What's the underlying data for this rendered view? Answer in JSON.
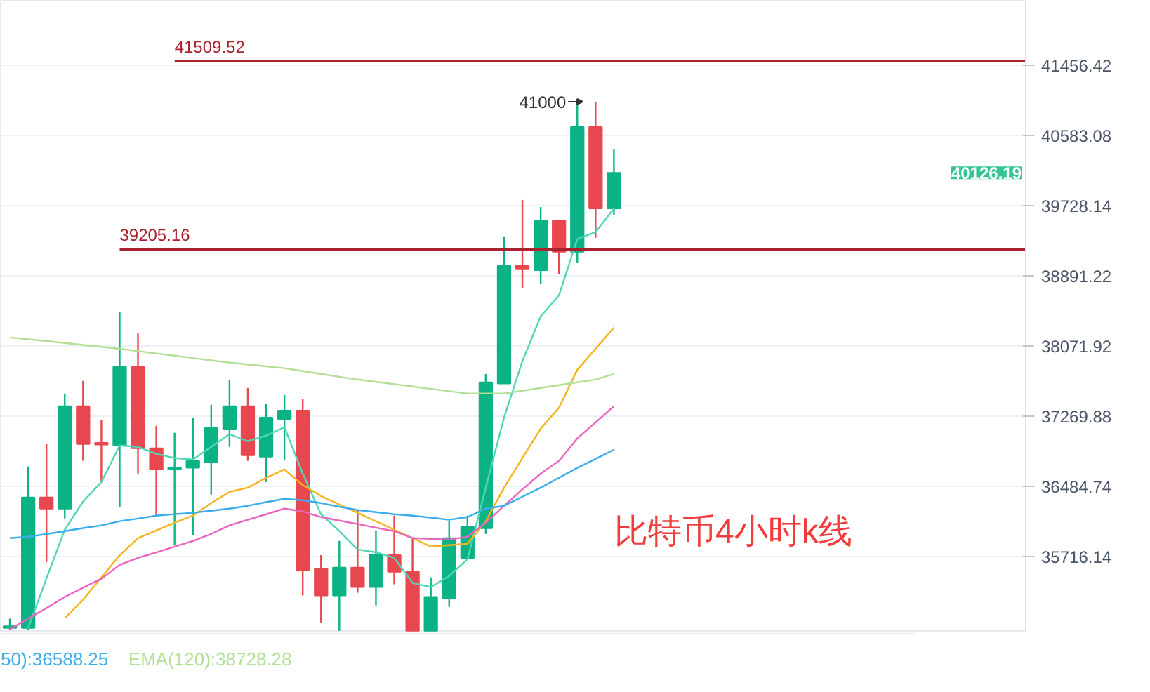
{
  "chart_data": {
    "type": "candlestick",
    "title": "比特币4小时k线",
    "categories": [
      null,
      null,
      null,
      null,
      null,
      null,
      null,
      null,
      null,
      null,
      null,
      null,
      null,
      null,
      null,
      null,
      null,
      null,
      null,
      null,
      null,
      null,
      null,
      null,
      null,
      null,
      null,
      null,
      null,
      null,
      null,
      null,
      null,
      null,
      null,
      null,
      null,
      null,
      null,
      null,
      null,
      null,
      null,
      null,
      null,
      null,
      null,
      null,
      null,
      null,
      null,
      null,
      null,
      null,
      null,
      null
    ],
    "ohlc": [
      [
        34950,
        35050,
        34930,
        34970
      ],
      [
        34950,
        36705,
        34930,
        36362
      ],
      [
        36362,
        36956,
        35656,
        36239
      ],
      [
        36239,
        37526,
        36131,
        37382
      ],
      [
        37382,
        37670,
        36768,
        36956
      ],
      [
        36970,
        37223,
        36532,
        36950
      ],
      [
        36940,
        38466,
        36254,
        37832
      ],
      [
        37832,
        38220,
        36626,
        36909
      ],
      [
        36909,
        37160,
        36162,
        36673
      ],
      [
        36673,
        37082,
        35839,
        36690
      ],
      [
        36690,
        37254,
        35947,
        36768
      ],
      [
        36752,
        37398,
        36393,
        37142
      ],
      [
        37127,
        37686,
        36924,
        37382
      ],
      [
        37382,
        37590,
        36768,
        36830
      ],
      [
        36815,
        37414,
        36532,
        37254
      ],
      [
        37238,
        37510,
        36783,
        37334
      ],
      [
        37334,
        37462,
        35296,
        35566
      ],
      [
        35581,
        35731,
        35009,
        35296
      ],
      [
        35296,
        35885,
        34920,
        35596
      ],
      [
        35596,
        36223,
        35326,
        35386
      ],
      [
        35386,
        35993,
        35190,
        35731
      ],
      [
        35731,
        36162,
        35416,
        35551
      ],
      [
        35551,
        35916,
        34920,
        34920
      ],
      [
        34920,
        35491,
        34920,
        35281
      ],
      [
        35266,
        36101,
        35175,
        35916
      ],
      [
        35701,
        36162,
        35686,
        36039
      ],
      [
        36023,
        37750,
        35962,
        37654
      ],
      [
        37640,
        39359,
        37640,
        39008
      ],
      [
        39008,
        39796,
        38744,
        38975
      ],
      [
        38958,
        39711,
        38793,
        39544
      ],
      [
        39544,
        39544,
        38908,
        39175
      ],
      [
        39175,
        41000,
        39041,
        40688
      ],
      [
        40688,
        41000,
        39342,
        39694
      ],
      [
        39694,
        40412,
        39611,
        40126.19
      ],
      null,
      null,
      null,
      null,
      null,
      null,
      null,
      null,
      null,
      null,
      null,
      null,
      null,
      null,
      null,
      null,
      null,
      null,
      null,
      null,
      null,
      null
    ],
    "colors": [
      "#0bb384",
      "#0bb384",
      "#e8474f",
      "#0bb384",
      "#e8474f",
      "#e8474f",
      "#0bb384",
      "#e8474f",
      "#e8474f",
      "#0bb384",
      "#0bb384",
      "#0bb384",
      "#0bb384",
      "#e8474f",
      "#0bb384",
      "#0bb384",
      "#e8474f",
      "#e8474f",
      "#0bb384",
      "#e8474f",
      "#0bb384",
      "#e8474f",
      "#e8474f",
      "#0bb384",
      "#0bb384",
      "#0bb384",
      "#0bb384",
      "#0bb384",
      "#e8474f",
      "#0bb384",
      "#e8474f",
      "#0bb384",
      "#e8474f",
      "#0bb384",
      null,
      null,
      null,
      null,
      null,
      null,
      null,
      null,
      null,
      null,
      null,
      null,
      null,
      null,
      null,
      null,
      null,
      null,
      null,
      null,
      null,
      null
    ],
    "series": [
      {
        "type": "line",
        "color": "#4fd6b8",
        "values": [
          null,
          34950,
          35480,
          36008,
          36316,
          36532,
          36940,
          36924,
          36846,
          36799,
          36783,
          36924,
          37066,
          36987,
          37050,
          37145,
          36626,
          36177,
          35993,
          35793,
          35762,
          35701,
          35431,
          35386,
          35506,
          35686,
          36470,
          37254,
          37896,
          38416,
          38662,
          39327,
          39410,
          39694,
          null,
          null,
          null,
          null,
          null,
          null,
          null,
          null,
          null,
          null,
          null,
          null,
          null,
          null,
          null,
          null,
          null,
          null,
          null,
          null,
          null,
          null
        ]
      },
      {
        "type": "line",
        "color": "#f5b31e",
        "values": [
          null,
          null,
          null,
          35055,
          35251,
          35490,
          35731,
          35916,
          36000,
          36085,
          36162,
          36300,
          36423,
          36470,
          36579,
          36673,
          36500,
          36377,
          36285,
          36193,
          36100,
          36008,
          35916,
          35824,
          35840,
          35854,
          36100,
          36470,
          36800,
          37129,
          37366,
          37798,
          38040,
          38285,
          null,
          null,
          null,
          null,
          null,
          null,
          null,
          null,
          null,
          null,
          null,
          null,
          null,
          null,
          null,
          null,
          null,
          null,
          null,
          null,
          null,
          null
        ]
      },
      {
        "type": "line",
        "color": "#e864c0",
        "values": [
          34935,
          35050,
          35161,
          35281,
          35380,
          35476,
          35626,
          35701,
          35760,
          35824,
          35885,
          35962,
          36055,
          36116,
          36177,
          36239,
          36208,
          36146,
          36108,
          36070,
          36030,
          35993,
          35916,
          35908,
          35900,
          35931,
          36085,
          36270,
          36450,
          36626,
          36768,
          37019,
          37200,
          37382,
          null,
          null,
          null,
          null,
          null,
          null,
          null,
          null,
          null,
          null,
          null,
          null,
          null,
          null,
          null,
          null,
          null,
          null,
          null,
          null,
          null,
          null
        ]
      },
      {
        "type": "line",
        "color": "#3badea",
        "values": [
          35916,
          35931,
          35960,
          35993,
          36025,
          36055,
          36101,
          36130,
          36162,
          36178,
          36193,
          36216,
          36239,
          36270,
          36310,
          36347,
          36331,
          36300,
          36260,
          36223,
          36200,
          36177,
          36162,
          36140,
          36116,
          36146,
          36239,
          36270,
          36370,
          36470,
          36580,
          36690,
          36790,
          36893,
          null,
          null,
          null,
          null,
          null,
          null,
          null,
          null,
          null,
          null,
          null,
          null,
          null,
          null,
          null,
          null,
          null,
          null,
          null,
          null,
          null,
          null
        ]
      },
      {
        "type": "line",
        "color": "#b2df94",
        "values": [
          38170,
          38150,
          38128,
          38106,
          38084,
          38061,
          38039,
          38012,
          37986,
          37960,
          37933,
          37906,
          37880,
          37859,
          37837,
          37816,
          37783,
          37751,
          37718,
          37686,
          37659,
          37633,
          37606,
          37579,
          37553,
          37526,
          37526,
          37526,
          37558,
          37590,
          37622,
          37654,
          37686,
          37750,
          null,
          null,
          null,
          null,
          null,
          null,
          null,
          null,
          null,
          null,
          null,
          null,
          null,
          null,
          null,
          null,
          null,
          null,
          null,
          null,
          null,
          null
        ]
      }
    ],
    "log": true,
    "ylim": [
      34904,
      42276
    ],
    "yticks": [
      35716.14,
      36484.74,
      37269.88,
      38071.92,
      38891.22,
      39728.14,
      40583.08,
      41456.42
    ],
    "grid": "y",
    "tick_labels": "y",
    "ref_lines": [
      {
        "axis": "y",
        "value": 41509.52,
        "label": "41509.52",
        "color": "#a8232f"
      },
      {
        "axis": "y",
        "value": 39205.16,
        "label": "39205.16",
        "color": "#a8232f"
      }
    ],
    "annotations": [
      "41000",
      "40126.19",
      "50):36588.25",
      "EMA(120):38728.28"
    ]
  }
}
